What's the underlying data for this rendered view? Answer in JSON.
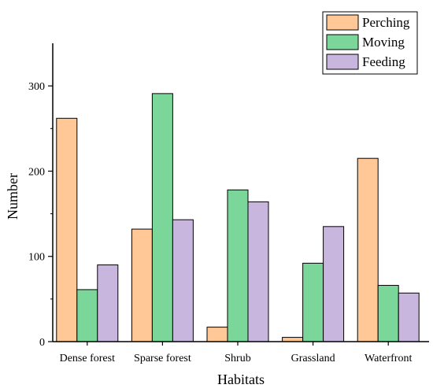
{
  "chart_data": {
    "type": "bar",
    "categories": [
      "Dense forest",
      "Sparse forest",
      "Shrub",
      "Grassland",
      "Waterfront"
    ],
    "series": [
      {
        "name": "Perching",
        "values": [
          262,
          132,
          17,
          5,
          215
        ],
        "color": "#FFC896"
      },
      {
        "name": "Moving",
        "values": [
          61,
          291,
          178,
          92,
          66
        ],
        "color": "#7BD69A"
      },
      {
        "name": "Feeding",
        "values": [
          90,
          143,
          164,
          135,
          57
        ],
        "color": "#C9B6DF"
      }
    ],
    "xlabel": "Habitats",
    "ylabel": "Number",
    "ylim": [
      0,
      350
    ],
    "yticks": [
      0,
      100,
      200,
      300
    ],
    "grid": false,
    "legend_position": "top-right"
  }
}
